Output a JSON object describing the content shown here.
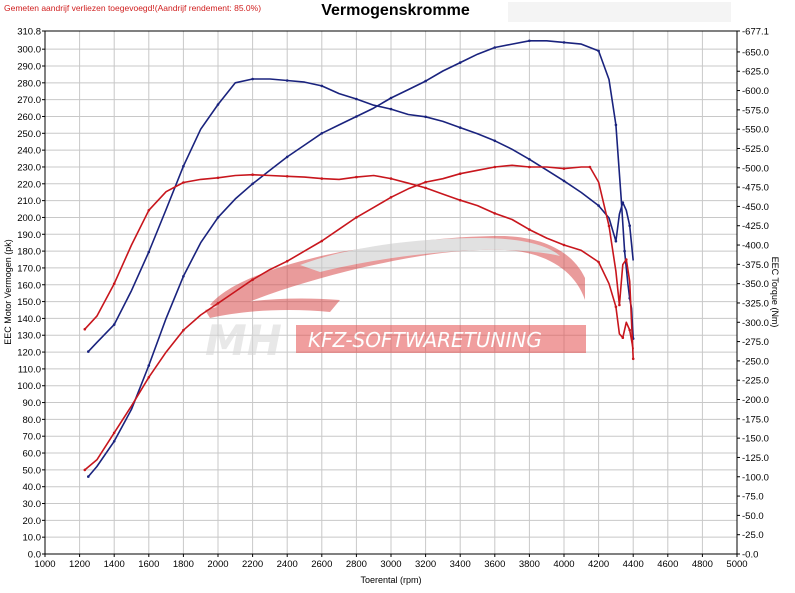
{
  "header": {
    "notice": "Gemeten aandrijf verliezen toegevoegd!(Aandrijf rendement: 85.0%)",
    "title": "Vermogenskromme"
  },
  "watermark": {
    "initials": "MH",
    "brand": "KFZ-SOFTWARETUNING"
  },
  "colors": {
    "blue": "#1a237e",
    "red": "#c8161d",
    "grid": "#c8c8c8",
    "watermark_red": "#e5504f"
  },
  "chart_data": {
    "type": "line",
    "title": "Vermogenskromme",
    "xlabel": "Toerental (rpm)",
    "ylabel_left": "EEC Motor Vermogen (pk)",
    "ylabel_right": "EEC Torque (Nm)",
    "xlim": [
      1000,
      5000
    ],
    "ylim_left": [
      0,
      310.8
    ],
    "ylim_right": [
      0,
      677.1
    ],
    "x_ticks": [
      "1000",
      "1200",
      "1400",
      "1600",
      "1800",
      "2000",
      "2200",
      "2400",
      "2600",
      "2800",
      "3000",
      "3200",
      "3400",
      "3600",
      "3800",
      "4000",
      "4200",
      "4400",
      "4600",
      "4800",
      "5000"
    ],
    "y_ticks_left": [
      "0.0",
      "10.0",
      "20.0",
      "30.0",
      "40.0",
      "50.0",
      "60.0",
      "70.0",
      "80.0",
      "90.0",
      "100.0",
      "110.0",
      "120.0",
      "130.0",
      "140.0",
      "150.0",
      "160.0",
      "170.0",
      "180.0",
      "190.0",
      "200.0",
      "210.0",
      "220.0",
      "230.0",
      "240.0",
      "250.0",
      "260.0",
      "270.0",
      "280.0",
      "290.0",
      "300.0",
      "310.8"
    ],
    "y_ticks_right": [
      "0.0",
      "25.0",
      "50.0",
      "75.0",
      "100.0",
      "125.0",
      "150.0",
      "175.0",
      "200.0",
      "225.0",
      "250.0",
      "275.0",
      "300.0",
      "325.0",
      "350.0",
      "375.0",
      "400.0",
      "425.0",
      "450.0",
      "475.0",
      "500.0",
      "525.0",
      "550.0",
      "575.0",
      "600.0",
      "625.0",
      "650.0",
      "677.1"
    ],
    "grid": true,
    "series": [
      {
        "color": "#1a237e",
        "axis": "left",
        "points": [
          [
            1250,
            46
          ],
          [
            1300,
            52
          ],
          [
            1400,
            67
          ],
          [
            1500,
            86
          ],
          [
            1600,
            112
          ],
          [
            1700,
            140
          ],
          [
            1800,
            165
          ],
          [
            1900,
            185
          ],
          [
            2000,
            200
          ],
          [
            2100,
            211
          ],
          [
            2200,
            220
          ],
          [
            2300,
            228
          ],
          [
            2400,
            236
          ],
          [
            2500,
            243
          ],
          [
            2600,
            250
          ],
          [
            2700,
            255
          ],
          [
            2800,
            260
          ],
          [
            2900,
            265
          ],
          [
            3000,
            271
          ],
          [
            3100,
            276
          ],
          [
            3200,
            281
          ],
          [
            3300,
            287
          ],
          [
            3400,
            292
          ],
          [
            3500,
            297
          ],
          [
            3600,
            301
          ],
          [
            3700,
            303
          ],
          [
            3800,
            305
          ],
          [
            3900,
            305
          ],
          [
            4000,
            304
          ],
          [
            4100,
            303
          ],
          [
            4200,
            299
          ],
          [
            4260,
            282
          ],
          [
            4300,
            255
          ],
          [
            4330,
            212
          ],
          [
            4350,
            180
          ],
          [
            4370,
            160
          ],
          [
            4380,
            152
          ],
          [
            4390,
            146
          ],
          [
            4400,
            128
          ]
        ]
      },
      {
        "color": "#1a237e",
        "axis": "right",
        "points": [
          [
            1250,
            262
          ],
          [
            1300,
            274
          ],
          [
            1400,
            297
          ],
          [
            1500,
            341
          ],
          [
            1600,
            391
          ],
          [
            1700,
            446
          ],
          [
            1800,
            502
          ],
          [
            1900,
            550
          ],
          [
            2000,
            582
          ],
          [
            2100,
            610
          ],
          [
            2200,
            615
          ],
          [
            2300,
            615
          ],
          [
            2400,
            613
          ],
          [
            2500,
            611
          ],
          [
            2600,
            606
          ],
          [
            2700,
            596
          ],
          [
            2800,
            589
          ],
          [
            2900,
            581
          ],
          [
            3000,
            576
          ],
          [
            3100,
            569
          ],
          [
            3200,
            566
          ],
          [
            3300,
            560
          ],
          [
            3400,
            552
          ],
          [
            3500,
            544
          ],
          [
            3600,
            535
          ],
          [
            3700,
            524
          ],
          [
            3800,
            511
          ],
          [
            3900,
            497
          ],
          [
            4000,
            483
          ],
          [
            4100,
            468
          ],
          [
            4200,
            451
          ],
          [
            4260,
            435
          ],
          [
            4300,
            405
          ],
          [
            4320,
            440
          ],
          [
            4340,
            455
          ],
          [
            4360,
            445
          ],
          [
            4380,
            425
          ],
          [
            4400,
            380
          ]
        ]
      },
      {
        "color": "#c8161d",
        "axis": "left",
        "points": [
          [
            1230,
            50
          ],
          [
            1300,
            56
          ],
          [
            1400,
            72
          ],
          [
            1500,
            88
          ],
          [
            1600,
            105
          ],
          [
            1700,
            120
          ],
          [
            1800,
            133
          ],
          [
            1900,
            142
          ],
          [
            2000,
            149
          ],
          [
            2100,
            156
          ],
          [
            2200,
            163
          ],
          [
            2300,
            169
          ],
          [
            2400,
            174
          ],
          [
            2500,
            180
          ],
          [
            2600,
            186
          ],
          [
            2700,
            193
          ],
          [
            2800,
            200
          ],
          [
            2900,
            206
          ],
          [
            3000,
            212
          ],
          [
            3100,
            217
          ],
          [
            3200,
            221
          ],
          [
            3300,
            223
          ],
          [
            3400,
            226
          ],
          [
            3500,
            228
          ],
          [
            3600,
            230
          ],
          [
            3700,
            231
          ],
          [
            3800,
            230
          ],
          [
            3900,
            230
          ],
          [
            4000,
            229
          ],
          [
            4100,
            230
          ],
          [
            4150,
            230
          ],
          [
            4200,
            221
          ],
          [
            4260,
            195
          ],
          [
            4300,
            168
          ],
          [
            4320,
            148
          ],
          [
            4340,
            172
          ],
          [
            4360,
            175
          ],
          [
            4380,
            162
          ],
          [
            4400,
            116
          ]
        ]
      },
      {
        "color": "#c8161d",
        "axis": "right",
        "points": [
          [
            1230,
            291
          ],
          [
            1300,
            308
          ],
          [
            1400,
            350
          ],
          [
            1500,
            400
          ],
          [
            1600,
            445
          ],
          [
            1700,
            469
          ],
          [
            1800,
            481
          ],
          [
            1900,
            485
          ],
          [
            2000,
            487
          ],
          [
            2100,
            490
          ],
          [
            2200,
            491
          ],
          [
            2300,
            490
          ],
          [
            2400,
            489
          ],
          [
            2500,
            488
          ],
          [
            2600,
            486
          ],
          [
            2700,
            485
          ],
          [
            2800,
            488
          ],
          [
            2900,
            490
          ],
          [
            3000,
            486
          ],
          [
            3100,
            480
          ],
          [
            3200,
            474
          ],
          [
            3300,
            466
          ],
          [
            3400,
            458
          ],
          [
            3500,
            451
          ],
          [
            3600,
            441
          ],
          [
            3700,
            433
          ],
          [
            3800,
            420
          ],
          [
            3900,
            409
          ],
          [
            4000,
            400
          ],
          [
            4100,
            393
          ],
          [
            4200,
            378
          ],
          [
            4260,
            350
          ],
          [
            4300,
            320
          ],
          [
            4320,
            285
          ],
          [
            4340,
            280
          ],
          [
            4360,
            300
          ],
          [
            4380,
            290
          ],
          [
            4400,
            265
          ]
        ]
      }
    ]
  }
}
